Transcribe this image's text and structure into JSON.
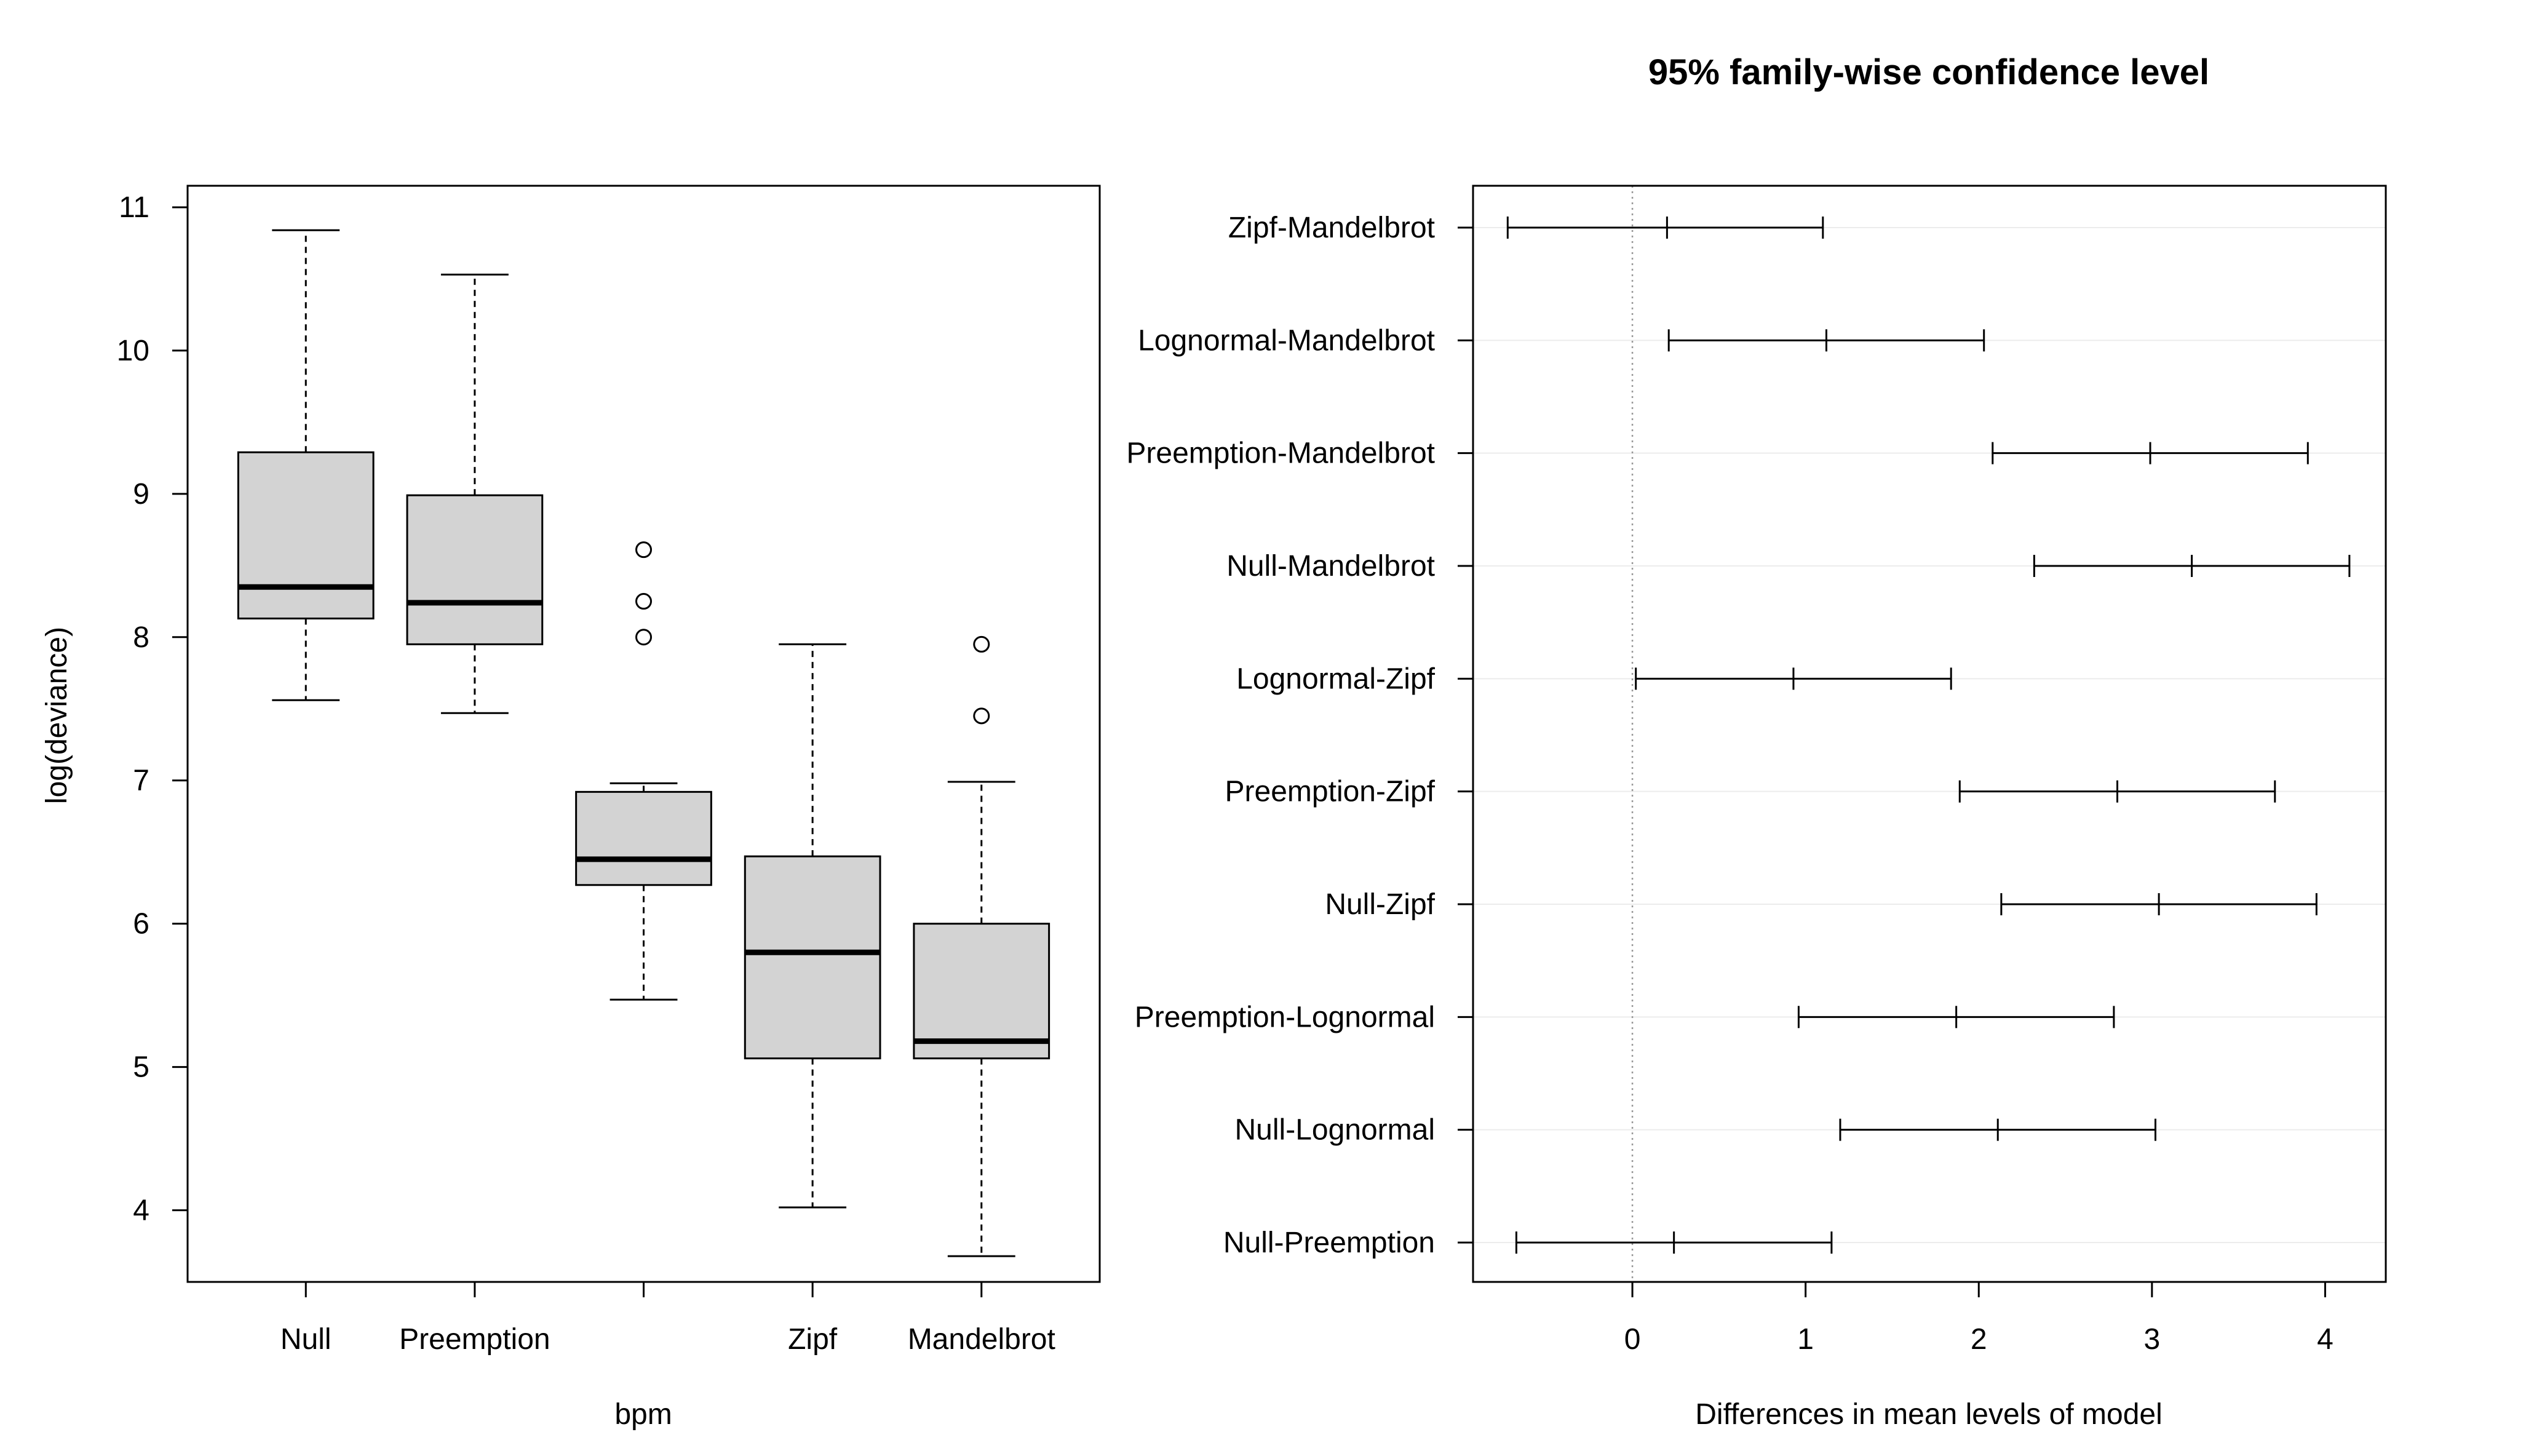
{
  "chart_data": [
    {
      "type": "box",
      "xlabel": "bpm",
      "ylabel": "log(deviance)",
      "ylim": [
        3.5,
        11.15
      ],
      "yticks": [
        "4",
        "5",
        "6",
        "7",
        "8",
        "9",
        "10",
        "11"
      ],
      "grid": false,
      "categories": [
        "Null",
        "Preemption",
        "",
        "Zipf",
        "Mandelbrot"
      ],
      "boxes": [
        {
          "category": "Null",
          "whisker_low": 7.56,
          "q1": 8.13,
          "median": 8.35,
          "q3": 9.29,
          "whisker_high": 10.84,
          "outliers": []
        },
        {
          "category": "Preemption",
          "whisker_low": 7.47,
          "q1": 7.95,
          "median": 8.24,
          "q3": 8.99,
          "whisker_high": 10.53,
          "outliers": []
        },
        {
          "category": "",
          "whisker_low": 5.47,
          "q1": 6.27,
          "median": 6.45,
          "q3": 6.92,
          "whisker_high": 6.98,
          "outliers": [
            8.0,
            8.25,
            8.61
          ]
        },
        {
          "category": "Zipf",
          "whisker_low": 4.02,
          "q1": 5.06,
          "median": 5.8,
          "q3": 6.47,
          "whisker_high": 7.95,
          "outliers": []
        },
        {
          "category": "Mandelbrot",
          "whisker_low": 3.68,
          "q1": 5.06,
          "median": 5.18,
          "q3": 6.0,
          "whisker_high": 6.99,
          "outliers": [
            7.45,
            7.95
          ]
        }
      ]
    },
    {
      "type": "interval",
      "title": "95% family-wise confidence level",
      "xlabel": "Differences in mean levels of model",
      "ylabel": "",
      "xlim": [
        -0.92,
        4.35
      ],
      "xticks": [
        "0",
        "1",
        "2",
        "3",
        "4"
      ],
      "reference_line": 0,
      "grid": true,
      "comparisons": [
        {
          "label": "Zipf-Mandelbrot",
          "lwr": -0.72,
          "estimate": 0.2,
          "upr": 1.1
        },
        {
          "label": "Lognormal-Mandelbrot",
          "lwr": 0.21,
          "estimate": 1.12,
          "upr": 2.03
        },
        {
          "label": "Preemption-Mandelbrot",
          "lwr": 2.08,
          "estimate": 2.99,
          "upr": 3.9
        },
        {
          "label": "Null-Mandelbrot",
          "lwr": 2.32,
          "estimate": 3.23,
          "upr": 4.14
        },
        {
          "label": "Lognormal-Zipf",
          "lwr": 0.02,
          "estimate": 0.93,
          "upr": 1.84
        },
        {
          "label": "Preemption-Zipf",
          "lwr": 1.89,
          "estimate": 2.8,
          "upr": 3.71
        },
        {
          "label": "Null-Zipf",
          "lwr": 2.13,
          "estimate": 3.04,
          "upr": 3.95
        },
        {
          "label": "Preemption-Lognormal",
          "lwr": 0.96,
          "estimate": 1.87,
          "upr": 2.78
        },
        {
          "label": "Null-Lognormal",
          "lwr": 1.2,
          "estimate": 2.11,
          "upr": 3.02
        },
        {
          "label": "Null-Preemption",
          "lwr": -0.67,
          "estimate": 0.24,
          "upr": 1.15
        }
      ]
    }
  ]
}
